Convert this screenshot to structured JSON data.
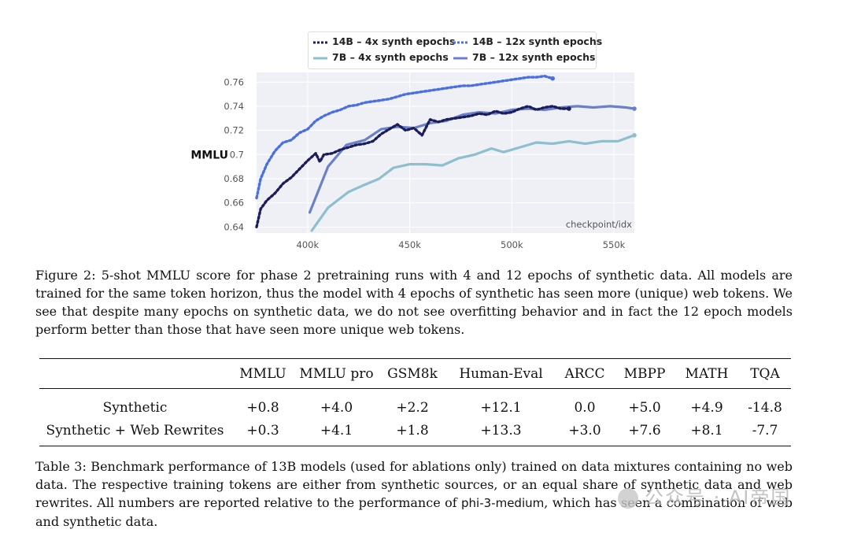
{
  "chart_data": {
    "type": "line",
    "ylabel": "MMLU",
    "xlabel": "checkpoint/idx",
    "xlim": [
      375000,
      560000
    ],
    "ylim": [
      0.635,
      0.768
    ],
    "x_ticks": [
      400000,
      450000,
      500000,
      550000
    ],
    "x_tick_labels": [
      "400k",
      "450k",
      "500k",
      "550k"
    ],
    "y_ticks": [
      0.64,
      0.66,
      0.68,
      0.7,
      0.72,
      0.74,
      0.76
    ],
    "y_tick_labels": [
      "0.64",
      "0.66",
      "0.68",
      "0.7",
      "0.72",
      "0.74",
      "0.76"
    ],
    "legend_position": "top-center",
    "series": [
      {
        "name": "14B – 4x synth epochs",
        "color": "#1b1d5c",
        "style": "dotted",
        "x": [
          375000,
          377000,
          380000,
          384000,
          388000,
          392000,
          396000,
          400000,
          404000,
          406000,
          408000,
          412000,
          416000,
          420000,
          424000,
          428000,
          432000,
          436000,
          440000,
          444000,
          448000,
          452000,
          456000,
          460000,
          464000,
          468000,
          472000,
          476000,
          480000,
          484000,
          488000,
          492000,
          496000,
          500000,
          504000,
          508000,
          512000,
          516000,
          520000,
          524000,
          528000
        ],
        "values": [
          0.64,
          0.655,
          0.662,
          0.668,
          0.676,
          0.681,
          0.688,
          0.695,
          0.701,
          0.694,
          0.7,
          0.701,
          0.704,
          0.706,
          0.708,
          0.709,
          0.711,
          0.717,
          0.721,
          0.725,
          0.72,
          0.722,
          0.716,
          0.729,
          0.727,
          0.729,
          0.73,
          0.731,
          0.732,
          0.734,
          0.733,
          0.736,
          0.734,
          0.735,
          0.738,
          0.74,
          0.737,
          0.739,
          0.74,
          0.738,
          0.738
        ]
      },
      {
        "name": "14B – 12x synth epochs",
        "color": "#4a6fe3",
        "style": "dotted",
        "x": [
          375000,
          377000,
          380000,
          384000,
          388000,
          392000,
          396000,
          400000,
          404000,
          408000,
          412000,
          416000,
          420000,
          424000,
          428000,
          432000,
          436000,
          440000,
          444000,
          448000,
          452000,
          456000,
          460000,
          464000,
          468000,
          472000,
          476000,
          480000,
          484000,
          488000,
          492000,
          496000,
          500000,
          504000,
          508000,
          512000,
          516000,
          520000
        ],
        "values": [
          0.664,
          0.68,
          0.692,
          0.703,
          0.71,
          0.712,
          0.718,
          0.721,
          0.728,
          0.732,
          0.735,
          0.737,
          0.74,
          0.741,
          0.743,
          0.744,
          0.745,
          0.746,
          0.748,
          0.75,
          0.751,
          0.752,
          0.753,
          0.754,
          0.755,
          0.756,
          0.757,
          0.757,
          0.758,
          0.759,
          0.76,
          0.761,
          0.762,
          0.763,
          0.764,
          0.764,
          0.765,
          0.763
        ]
      },
      {
        "name": "7B – 4x synth epochs",
        "color": "#8dbfcd",
        "style": "solid",
        "x": [
          402000,
          410000,
          420000,
          428000,
          435000,
          442000,
          450000,
          458000,
          466000,
          474000,
          482000,
          490000,
          496000,
          504000,
          512000,
          520000,
          528000,
          536000,
          544000,
          552000,
          560000
        ],
        "values": [
          0.637,
          0.656,
          0.669,
          0.675,
          0.68,
          0.689,
          0.692,
          0.692,
          0.691,
          0.697,
          0.7,
          0.705,
          0.702,
          0.706,
          0.71,
          0.709,
          0.711,
          0.709,
          0.711,
          0.711,
          0.716
        ]
      },
      {
        "name": "7B – 12x synth epochs",
        "color": "#6b80c9",
        "style": "solid",
        "x": [
          401000,
          410000,
          419000,
          428000,
          436000,
          444000,
          452000,
          460000,
          468000,
          476000,
          484000,
          492000,
          500000,
          508000,
          516000,
          524000,
          532000,
          540000,
          548000,
          556000,
          560000
        ],
        "values": [
          0.652,
          0.69,
          0.708,
          0.712,
          0.721,
          0.723,
          0.722,
          0.726,
          0.728,
          0.733,
          0.735,
          0.734,
          0.737,
          0.738,
          0.737,
          0.739,
          0.74,
          0.739,
          0.74,
          0.739,
          0.738
        ]
      }
    ]
  },
  "figure_caption": "Figure 2: 5-shot MMLU score for phase 2 pretraining runs with 4 and 12 epochs of synthetic data. All models are trained for the same token horizon, thus the model with 4 epochs of synthetic has seen more (unique) web tokens. We see that despite many epochs on synthetic data, we do not see overfitting behavior and in fact the 12 epoch models perform better than those that have seen more unique web tokens.",
  "table": {
    "headers": [
      "",
      "MMLU",
      "MMLU pro",
      "GSM8k",
      "Human-Eval",
      "ARCC",
      "MBPP",
      "MATH",
      "TQA"
    ],
    "rows": [
      [
        "Synthetic",
        "+0.8",
        "+4.0",
        "+2.2",
        "+12.1",
        "0.0",
        "+5.0",
        "+4.9",
        "-14.8"
      ],
      [
        "Synthetic + Web Rewrites",
        "+0.3",
        "+4.1",
        "+1.8",
        "+13.3",
        "+3.0",
        "+7.6",
        "+8.1",
        "-7.7"
      ]
    ]
  },
  "table_caption_pre": "Table 3: Benchmark performance of 13B models (used for ablations only) trained on data mixtures containing no web data. The respective training tokens are either from synthetic sources, or an equal share of synthetic data and web rewrites. All numbers are reported relative to the performance of ",
  "table_caption_model": "phi-3-medium",
  "table_caption_post": ", which has seen a combination of web and synthetic data.",
  "watermark": "公众号 · AI帝国"
}
